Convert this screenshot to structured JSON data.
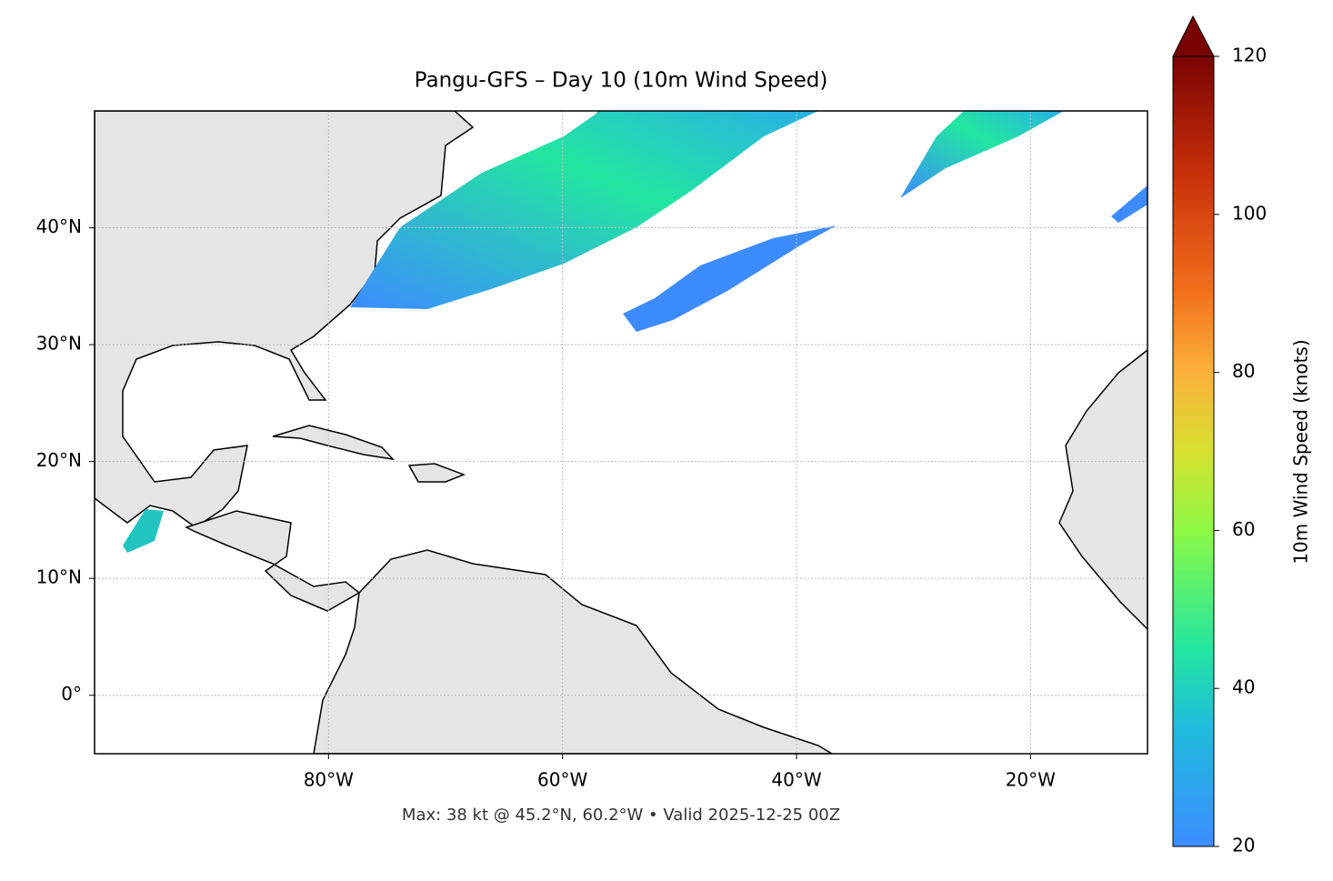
{
  "title": "Pangu-GFS – Day 10 (10m Wind Speed)",
  "map": {
    "xlim": [
      -100,
      -10
    ],
    "ylim": [
      -5,
      50
    ],
    "xticks": [
      {
        "value": -80,
        "label": "80°W"
      },
      {
        "value": -60,
        "label": "60°W"
      },
      {
        "value": -40,
        "label": "40°W"
      },
      {
        "value": -20,
        "label": "20°W"
      }
    ],
    "yticks": [
      {
        "value": 0,
        "label": "0°"
      },
      {
        "value": 10,
        "label": "10°N"
      },
      {
        "value": 20,
        "label": "20°N"
      },
      {
        "value": 30,
        "label": "30°N"
      },
      {
        "value": 40,
        "label": "40°N"
      }
    ],
    "grid": true
  },
  "colorbar": {
    "label": "10m Wind Speed (knots)",
    "lim": [
      20,
      120
    ],
    "ticks": [
      20,
      40,
      60,
      80,
      100,
      120
    ]
  },
  "caption": "Max: 38 kt @ 45.2°N, 60.2°W • Valid 2025-12-25 00Z"
}
